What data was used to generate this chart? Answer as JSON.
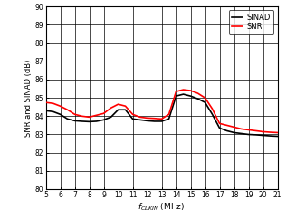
{
  "title": "",
  "xlabel": "f_{CLKIN} (MHz)",
  "ylabel": "SNR and SINAD (dB)",
  "xlim": [
    5,
    21
  ],
  "ylim": [
    80,
    90
  ],
  "xticks": [
    5,
    6,
    7,
    8,
    9,
    10,
    11,
    12,
    13,
    14,
    15,
    16,
    17,
    18,
    19,
    20,
    21
  ],
  "yticks": [
    80,
    81,
    82,
    83,
    84,
    85,
    86,
    87,
    88,
    89,
    90
  ],
  "sinad_x": [
    5,
    5.5,
    6,
    6.5,
    7,
    7.5,
    8,
    8.5,
    9,
    9.5,
    10,
    10.5,
    11,
    11.5,
    12,
    12.5,
    13,
    13.5,
    14,
    14.5,
    15,
    15.5,
    16,
    16.5,
    17,
    17.5,
    18,
    18.5,
    19,
    19.5,
    20,
    20.5,
    21
  ],
  "sinad_y": [
    84.3,
    84.25,
    84.1,
    83.85,
    83.75,
    83.72,
    83.7,
    83.72,
    83.8,
    83.95,
    84.35,
    84.35,
    83.85,
    83.8,
    83.75,
    83.72,
    83.72,
    83.85,
    85.1,
    85.2,
    85.1,
    84.95,
    84.75,
    84.1,
    83.35,
    83.2,
    83.1,
    83.05,
    83.0,
    82.98,
    82.95,
    82.92,
    82.9
  ],
  "snr_x": [
    5,
    5.5,
    6,
    6.5,
    7,
    7.5,
    8,
    8.5,
    9,
    9.5,
    10,
    10.5,
    11,
    11.5,
    12,
    12.5,
    13,
    13.5,
    14,
    14.5,
    15,
    15.5,
    16,
    16.5,
    17,
    17.5,
    18,
    18.5,
    19,
    19.5,
    20,
    20.5,
    21
  ],
  "snr_y": [
    84.75,
    84.7,
    84.55,
    84.35,
    84.1,
    84.0,
    83.95,
    84.05,
    84.15,
    84.45,
    84.65,
    84.55,
    84.1,
    83.95,
    83.9,
    83.88,
    83.85,
    84.1,
    85.35,
    85.45,
    85.4,
    85.25,
    85.0,
    84.4,
    83.6,
    83.5,
    83.4,
    83.3,
    83.25,
    83.2,
    83.15,
    83.12,
    83.1
  ],
  "sinad_color": "#000000",
  "snr_color": "#ff0000",
  "linewidth": 1.2,
  "legend_labels": [
    "SINAD",
    "SNR"
  ],
  "bg_color": "#ffffff",
  "grid_color": "#000000"
}
